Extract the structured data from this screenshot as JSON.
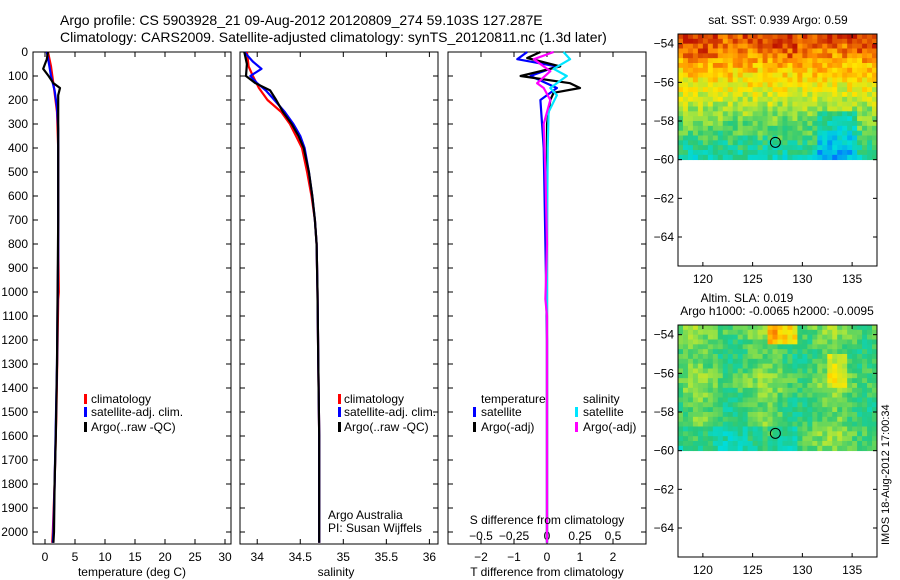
{
  "figure": {
    "title_line1": "Argo profile: CS 5903928_21 09-Aug-2012 20120809_274 59.103S 127.287E",
    "title_line2": "Climatology: CARS2009. Satellite-adjusted climatology: synTS_20120811.nc (1.3d later)",
    "vertical_stamp": "IMOS 18-Aug-2012 17:00:34",
    "credit_line1": "Argo Australia",
    "credit_line2": "PI: Susan Wijffels"
  },
  "colors": {
    "climatology": "#ff0000",
    "satellite": "#0000ff",
    "argo": "#000000",
    "salinity_satellite": "#00e5ff",
    "salinity_argo": "#ff00ff"
  },
  "chart_data": [
    {
      "type": "line",
      "name": "temperature",
      "xlabel": "temperature (deg C)",
      "ylabel": "",
      "xlim": [
        -2,
        31
      ],
      "ylim": [
        2050,
        0
      ],
      "xticks": [
        0,
        5,
        10,
        15,
        20,
        25,
        30
      ],
      "yticks": [
        0,
        100,
        200,
        300,
        400,
        500,
        600,
        700,
        800,
        900,
        1000,
        1100,
        1200,
        1300,
        1400,
        1500,
        1600,
        1700,
        1800,
        1900,
        2000
      ],
      "legend": [
        "climatology",
        "satellite-adj. clim.",
        "Argo(..raw -QC)"
      ],
      "series": [
        {
          "name": "climatology",
          "color": "#ff0000",
          "points": [
            [
              0.5,
              0
            ],
            [
              1.0,
              60
            ],
            [
              1.5,
              150
            ],
            [
              2.0,
              250
            ],
            [
              2.2,
              400
            ],
            [
              2.2,
              600
            ],
            [
              2.2,
              800
            ],
            [
              2.3,
              1000
            ],
            [
              2.2,
              1030
            ],
            [
              2.1,
              1200
            ],
            [
              1.9,
              1500
            ],
            [
              1.6,
              1800
            ],
            [
              1.3,
              2000
            ],
            [
              1.2,
              2045
            ]
          ]
        },
        {
          "name": "satellite",
          "color": "#0000ff",
          "points": [
            [
              0.3,
              0
            ],
            [
              0.6,
              40
            ],
            [
              1.0,
              100
            ],
            [
              1.6,
              160
            ],
            [
              2.0,
              230
            ],
            [
              2.2,
              320
            ],
            [
              2.2,
              450
            ],
            [
              2.2,
              650
            ],
            [
              2.2,
              850
            ],
            [
              2.1,
              1050
            ],
            [
              2.0,
              1300
            ],
            [
              1.8,
              1550
            ],
            [
              1.6,
              1800
            ],
            [
              1.4,
              2000
            ],
            [
              1.3,
              2045
            ]
          ]
        },
        {
          "name": "Argo",
          "color": "#000000",
          "points": [
            [
              0.5,
              0
            ],
            [
              0.3,
              30
            ],
            [
              -0.3,
              70
            ],
            [
              0.6,
              100
            ],
            [
              1.4,
              130
            ],
            [
              2.5,
              150
            ],
            [
              2.2,
              180
            ],
            [
              2.2,
              250
            ],
            [
              2.2,
              400
            ],
            [
              2.2,
              700
            ],
            [
              2.1,
              1000
            ],
            [
              2.0,
              1300
            ],
            [
              1.8,
              1600
            ],
            [
              1.6,
              1800
            ],
            [
              1.5,
              2000
            ],
            [
              1.4,
              2045
            ]
          ]
        }
      ]
    },
    {
      "type": "line",
      "name": "salinity",
      "xlabel": "salinity",
      "ylabel": "",
      "xlim": [
        33.8,
        36.1
      ],
      "ylim": [
        2050,
        0
      ],
      "xticks": [
        34,
        34.5,
        35,
        35.5,
        36
      ],
      "legend": [
        "climatology",
        "satellite-adj. clim.",
        "Argo(..raw -QC)"
      ],
      "series": [
        {
          "name": "climatology",
          "color": "#ff0000",
          "points": [
            [
              33.88,
              0
            ],
            [
              33.9,
              60
            ],
            [
              33.95,
              100
            ],
            [
              34.02,
              150
            ],
            [
              34.12,
              200
            ],
            [
              34.28,
              250
            ],
            [
              34.38,
              300
            ],
            [
              34.45,
              350
            ],
            [
              34.52,
              400
            ],
            [
              34.58,
              500
            ],
            [
              34.63,
              600
            ],
            [
              34.67,
              700
            ],
            [
              34.69,
              800
            ],
            [
              34.7,
              1000
            ],
            [
              34.71,
              1300
            ],
            [
              34.72,
              1600
            ],
            [
              34.72,
              2000
            ],
            [
              34.72,
              2045
            ]
          ]
        },
        {
          "name": "satellite",
          "color": "#0000ff",
          "points": [
            [
              33.85,
              0
            ],
            [
              33.95,
              40
            ],
            [
              34.05,
              70
            ],
            [
              33.92,
              100
            ],
            [
              34.0,
              130
            ],
            [
              34.1,
              160
            ],
            [
              34.2,
              200
            ],
            [
              34.32,
              250
            ],
            [
              34.42,
              300
            ],
            [
              34.5,
              350
            ],
            [
              34.55,
              400
            ],
            [
              34.6,
              500
            ],
            [
              34.64,
              600
            ],
            [
              34.67,
              700
            ],
            [
              34.69,
              800
            ],
            [
              34.7,
              1000
            ],
            [
              34.71,
              1300
            ],
            [
              34.72,
              1600
            ],
            [
              34.72,
              2000
            ],
            [
              34.72,
              2045
            ]
          ]
        },
        {
          "name": "Argo",
          "color": "#000000",
          "points": [
            [
              33.85,
              0
            ],
            [
              33.88,
              50
            ],
            [
              33.87,
              100
            ],
            [
              33.98,
              130
            ],
            [
              34.15,
              160
            ],
            [
              34.22,
              200
            ],
            [
              34.3,
              250
            ],
            [
              34.4,
              300
            ],
            [
              34.48,
              350
            ],
            [
              34.54,
              400
            ],
            [
              34.6,
              500
            ],
            [
              34.64,
              600
            ],
            [
              34.67,
              700
            ],
            [
              34.69,
              800
            ],
            [
              34.7,
              1000
            ],
            [
              34.71,
              1300
            ],
            [
              34.72,
              1600
            ],
            [
              34.72,
              2000
            ],
            [
              34.72,
              2045
            ]
          ]
        }
      ]
    },
    {
      "type": "line",
      "name": "difference",
      "xlabel": "T difference from climatology",
      "xlabel_top": "S difference from climatology",
      "xlim": [
        -3,
        3
      ],
      "ylim": [
        2050,
        0
      ],
      "xticks": [
        -2,
        -1,
        0,
        1,
        2
      ],
      "xticks_top": [
        -0.5,
        -0.25,
        0,
        0.25,
        0.5
      ],
      "legend_headers": [
        "temperature",
        "salinity"
      ],
      "legend_left": [
        "satellite",
        "Argo(-adj)"
      ],
      "legend_right": [
        "satellite",
        "Argo(-adj)"
      ],
      "series": [
        {
          "name": "T satellite",
          "color": "#0000ff",
          "points": [
            [
              -0.6,
              0
            ],
            [
              -0.9,
              30
            ],
            [
              0.3,
              60
            ],
            [
              -0.5,
              100
            ],
            [
              0.3,
              150
            ],
            [
              -0.2,
              200
            ],
            [
              -0.1,
              400
            ],
            [
              -0.05,
              800
            ],
            [
              0,
              1200
            ],
            [
              0,
              2045
            ]
          ]
        },
        {
          "name": "T Argo(-adj)",
          "color": "#000000",
          "points": [
            [
              -0.2,
              0
            ],
            [
              -0.6,
              25
            ],
            [
              0.4,
              60
            ],
            [
              -0.8,
              100
            ],
            [
              0.7,
              130
            ],
            [
              1.0,
              150
            ],
            [
              0.2,
              170
            ],
            [
              0.1,
              200
            ],
            [
              0,
              300
            ],
            [
              0,
              600
            ],
            [
              0,
              1200
            ],
            [
              0,
              2045
            ]
          ]
        },
        {
          "name": "S satellite",
          "color": "#00e5ff",
          "points": [
            [
              0.5,
              0
            ],
            [
              0.7,
              30
            ],
            [
              0.2,
              70
            ],
            [
              0.6,
              100
            ],
            [
              0.1,
              150
            ],
            [
              0.3,
              180
            ],
            [
              0.05,
              250
            ],
            [
              0.02,
              400
            ],
            [
              0,
              800
            ],
            [
              0,
              2045
            ]
          ]
        },
        {
          "name": "S Argo(-adj)",
          "color": "#ff00ff",
          "points": [
            [
              0.2,
              0
            ],
            [
              -0.4,
              30
            ],
            [
              0.1,
              80
            ],
            [
              -0.3,
              130
            ],
            [
              -0.1,
              150
            ],
            [
              0.1,
              200
            ],
            [
              -0.1,
              300
            ],
            [
              -0.05,
              500
            ],
            [
              0,
              800
            ],
            [
              -0.05,
              1030
            ],
            [
              0,
              1100
            ],
            [
              0,
              2045
            ]
          ]
        }
      ]
    },
    {
      "type": "heatmap",
      "name": "sst_map",
      "title": "sat. SST: 0.939 Argo: 0.59",
      "xlim": [
        117.5,
        137.5
      ],
      "ylim": [
        -65.5,
        -53.5
      ],
      "xticks": [
        120,
        125,
        130,
        135
      ],
      "yticks": [
        -54,
        -56,
        -58,
        -60,
        -62,
        -64
      ],
      "data_extent_lat": [
        -60,
        -53.5
      ],
      "marker": {
        "lon": 127.287,
        "lat": -59.103
      }
    },
    {
      "type": "heatmap",
      "name": "sla_map",
      "title": "Altim. SLA: 0.019",
      "subtitle": "Argo h1000: -0.0065 h2000: -0.0095",
      "xlim": [
        117.5,
        137.5
      ],
      "ylim": [
        -65.5,
        -53.5
      ],
      "xticks": [
        120,
        125,
        130,
        135
      ],
      "yticks": [
        -54,
        -56,
        -58,
        -60,
        -62,
        -64
      ],
      "data_extent_lat": [
        -60,
        -53.5
      ],
      "marker": {
        "lon": 127.287,
        "lat": -59.103
      }
    }
  ]
}
